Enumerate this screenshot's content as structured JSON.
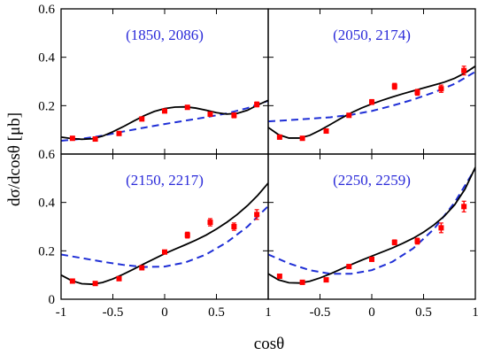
{
  "chart_data": {
    "type": "scatter",
    "layout": "2x2 panels with shared axes",
    "xlabel": "cosθ",
    "ylabel": "dσ/dcosθ [μb]",
    "xlim": [
      -1,
      1
    ],
    "ylim": [
      0,
      0.6
    ],
    "x_ticks": [
      -1,
      -0.5,
      0,
      0.5,
      1
    ],
    "x_tick_labels": [
      "-1",
      "-0.5",
      "0",
      "0.5",
      "1"
    ],
    "y_ticks": [
      0,
      0.2,
      0.4,
      0.6
    ],
    "y_tick_labels": [
      "0",
      "0.2",
      "0.4",
      "0.6"
    ],
    "grid": false,
    "colors": {
      "data": "#ff0000",
      "solid": "#000000",
      "dashed": "#1f2fd6",
      "label": "#2b2bd9"
    },
    "panels": [
      {
        "label": "(1850, 2086)",
        "points": [
          {
            "x": -0.89,
            "y": 0.065,
            "err": 0.008
          },
          {
            "x": -0.67,
            "y": 0.062,
            "err": 0.008
          },
          {
            "x": -0.44,
            "y": 0.085,
            "err": 0.008
          },
          {
            "x": -0.22,
            "y": 0.145,
            "err": 0.008
          },
          {
            "x": 0.0,
            "y": 0.178,
            "err": 0.008
          },
          {
            "x": 0.22,
            "y": 0.193,
            "err": 0.008
          },
          {
            "x": 0.44,
            "y": 0.165,
            "err": 0.008
          },
          {
            "x": 0.67,
            "y": 0.16,
            "err": 0.01
          },
          {
            "x": 0.89,
            "y": 0.205,
            "err": 0.01
          }
        ],
        "solid_curve": {
          "x": [
            -1,
            -0.9,
            -0.8,
            -0.7,
            -0.6,
            -0.5,
            -0.4,
            -0.3,
            -0.2,
            -0.1,
            0,
            0.1,
            0.2,
            0.3,
            0.4,
            0.5,
            0.6,
            0.7,
            0.8,
            0.9,
            1
          ],
          "y": [
            0.07,
            0.064,
            0.061,
            0.063,
            0.074,
            0.092,
            0.113,
            0.136,
            0.158,
            0.176,
            0.188,
            0.194,
            0.195,
            0.19,
            0.181,
            0.171,
            0.165,
            0.168,
            0.181,
            0.203,
            0.222
          ]
        },
        "dashed_curve": {
          "x": [
            -1,
            -0.8,
            -0.6,
            -0.4,
            -0.2,
            0,
            0.2,
            0.4,
            0.6,
            0.8,
            1
          ],
          "y": [
            0.055,
            0.063,
            0.076,
            0.093,
            0.109,
            0.124,
            0.138,
            0.152,
            0.168,
            0.19,
            0.22
          ]
        }
      },
      {
        "label": "(2050, 2174)",
        "points": [
          {
            "x": -0.89,
            "y": 0.07,
            "err": 0.008
          },
          {
            "x": -0.67,
            "y": 0.065,
            "err": 0.008
          },
          {
            "x": -0.44,
            "y": 0.095,
            "err": 0.008
          },
          {
            "x": -0.22,
            "y": 0.16,
            "err": 0.008
          },
          {
            "x": 0.0,
            "y": 0.215,
            "err": 0.01
          },
          {
            "x": 0.22,
            "y": 0.28,
            "err": 0.012
          },
          {
            "x": 0.44,
            "y": 0.255,
            "err": 0.012
          },
          {
            "x": 0.67,
            "y": 0.27,
            "err": 0.015
          },
          {
            "x": 0.89,
            "y": 0.345,
            "err": 0.018
          }
        ],
        "solid_curve": {
          "x": [
            -1,
            -0.9,
            -0.8,
            -0.7,
            -0.6,
            -0.5,
            -0.4,
            -0.3,
            -0.2,
            -0.1,
            0,
            0.1,
            0.2,
            0.3,
            0.4,
            0.5,
            0.6,
            0.7,
            0.8,
            0.9,
            1
          ],
          "y": [
            0.11,
            0.08,
            0.066,
            0.066,
            0.077,
            0.098,
            0.122,
            0.147,
            0.17,
            0.19,
            0.207,
            0.222,
            0.236,
            0.249,
            0.261,
            0.273,
            0.285,
            0.297,
            0.313,
            0.335,
            0.363
          ]
        },
        "dashed_curve": {
          "x": [
            -1,
            -0.8,
            -0.6,
            -0.4,
            -0.2,
            0,
            0.2,
            0.4,
            0.6,
            0.8,
            1
          ],
          "y": [
            0.135,
            0.14,
            0.146,
            0.152,
            0.162,
            0.178,
            0.2,
            0.225,
            0.255,
            0.29,
            0.34
          ]
        }
      },
      {
        "label": "(2150, 2217)",
        "points": [
          {
            "x": -0.89,
            "y": 0.075,
            "err": 0.008
          },
          {
            "x": -0.67,
            "y": 0.065,
            "err": 0.008
          },
          {
            "x": -0.44,
            "y": 0.085,
            "err": 0.008
          },
          {
            "x": -0.22,
            "y": 0.13,
            "err": 0.008
          },
          {
            "x": 0.0,
            "y": 0.195,
            "err": 0.008
          },
          {
            "x": 0.22,
            "y": 0.265,
            "err": 0.012
          },
          {
            "x": 0.44,
            "y": 0.318,
            "err": 0.015
          },
          {
            "x": 0.67,
            "y": 0.3,
            "err": 0.015
          },
          {
            "x": 0.89,
            "y": 0.35,
            "err": 0.02
          }
        ],
        "solid_curve": {
          "x": [
            -1,
            -0.9,
            -0.8,
            -0.7,
            -0.6,
            -0.5,
            -0.4,
            -0.3,
            -0.2,
            -0.1,
            0,
            0.1,
            0.2,
            0.3,
            0.4,
            0.5,
            0.6,
            0.7,
            0.8,
            0.9,
            1
          ],
          "y": [
            0.1,
            0.077,
            0.064,
            0.062,
            0.069,
            0.084,
            0.103,
            0.124,
            0.146,
            0.167,
            0.188,
            0.207,
            0.225,
            0.244,
            0.265,
            0.29,
            0.318,
            0.35,
            0.387,
            0.43,
            0.48
          ]
        },
        "dashed_curve": {
          "x": [
            -1,
            -0.8,
            -0.6,
            -0.4,
            -0.2,
            0,
            0.2,
            0.4,
            0.6,
            0.8,
            1
          ],
          "y": [
            0.185,
            0.17,
            0.155,
            0.142,
            0.133,
            0.135,
            0.152,
            0.185,
            0.235,
            0.3,
            0.385
          ]
        }
      },
      {
        "label": "(2250, 2259)",
        "points": [
          {
            "x": -0.89,
            "y": 0.095,
            "err": 0.008
          },
          {
            "x": -0.67,
            "y": 0.07,
            "err": 0.008
          },
          {
            "x": -0.44,
            "y": 0.08,
            "err": 0.008
          },
          {
            "x": -0.22,
            "y": 0.135,
            "err": 0.008
          },
          {
            "x": 0.0,
            "y": 0.165,
            "err": 0.008
          },
          {
            "x": 0.22,
            "y": 0.235,
            "err": 0.01
          },
          {
            "x": 0.44,
            "y": 0.24,
            "err": 0.012
          },
          {
            "x": 0.67,
            "y": 0.295,
            "err": 0.02
          },
          {
            "x": 0.89,
            "y": 0.383,
            "err": 0.022
          }
        ],
        "solid_curve": {
          "x": [
            -1,
            -0.9,
            -0.8,
            -0.7,
            -0.6,
            -0.5,
            -0.4,
            -0.3,
            -0.2,
            -0.1,
            0,
            0.1,
            0.2,
            0.3,
            0.4,
            0.5,
            0.6,
            0.7,
            0.8,
            0.9,
            1
          ],
          "y": [
            0.105,
            0.08,
            0.068,
            0.067,
            0.074,
            0.088,
            0.105,
            0.124,
            0.143,
            0.161,
            0.178,
            0.195,
            0.212,
            0.231,
            0.252,
            0.277,
            0.307,
            0.343,
            0.39,
            0.455,
            0.545
          ]
        },
        "dashed_curve": {
          "x": [
            -1,
            -0.8,
            -0.6,
            -0.4,
            -0.2,
            0,
            0.2,
            0.4,
            0.6,
            0.8,
            1
          ],
          "y": [
            0.185,
            0.148,
            0.12,
            0.105,
            0.105,
            0.12,
            0.155,
            0.21,
            0.29,
            0.4,
            0.54
          ]
        }
      }
    ]
  }
}
